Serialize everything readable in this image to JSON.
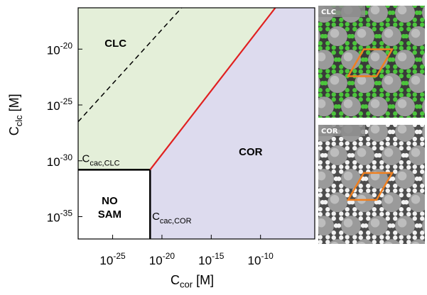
{
  "chart_data": {
    "type": "area",
    "title": "",
    "xlabel": "C",
    "xlabel_sub": "cor",
    "xlabel_unit": " [M]",
    "ylabel": "C",
    "ylabel_sub": "clc",
    "ylabel_unit": " [M]",
    "xscale": "log",
    "yscale": "log",
    "xlim_exp": [
      -28.5,
      -4.5
    ],
    "ylim_exp": [
      -37,
      -16.3
    ],
    "xticks": [
      {
        "exp": -25,
        "base": "10",
        "sup": "-25"
      },
      {
        "exp": -20,
        "base": "10",
        "sup": "-20"
      },
      {
        "exp": -15,
        "base": "10",
        "sup": "-15"
      },
      {
        "exp": -10,
        "base": "10",
        "sup": "-10"
      }
    ],
    "yticks": [
      {
        "exp": -20,
        "base": "10",
        "sup": "-20"
      },
      {
        "exp": -25,
        "base": "10",
        "sup": "-25"
      },
      {
        "exp": -30,
        "base": "10",
        "sup": "-30"
      },
      {
        "exp": -35,
        "base": "10",
        "sup": "-35"
      }
    ],
    "thresholds": {
      "cac_cor_exp": -21.2,
      "cac_clc_exp": -30.8
    },
    "boundary_red": [
      [
        -21.2,
        -30.8
      ],
      [
        -8.5,
        -16.3
      ]
    ],
    "boundary_dashed": [
      [
        -28.5,
        -26.5
      ],
      [
        -18.0,
        -16.3
      ]
    ],
    "regions": [
      {
        "name": "CLC",
        "label": "CLC",
        "color": "#e4efd9",
        "label_pos_exp": [
          -24.7,
          -19.8
        ]
      },
      {
        "name": "COR",
        "label": "COR",
        "color": "#dddbee",
        "label_pos_exp": [
          -11.0,
          -29.5
        ]
      },
      {
        "name": "NO SAM",
        "label_lines": [
          "NO",
          "SAM"
        ],
        "color": "#ffffff",
        "label_pos_exp": [
          -25.3,
          -33.9
        ]
      }
    ],
    "annotations": [
      {
        "base": "C",
        "sub": "cac,CLC",
        "pos_exp": [
          -28.1,
          -30.1
        ]
      },
      {
        "base": "C",
        "sub": "cac,COR",
        "pos_exp": [
          -21.0,
          -35.3
        ]
      }
    ],
    "colors": {
      "red_line": "#e02020",
      "dashed_line": "#000000",
      "threshold_line": "#000000"
    }
  },
  "panels": [
    {
      "name": "clc-snapshot",
      "label": "CLC",
      "background": "#3a3a3a",
      "ring_color": "#4cc43c",
      "cell_color": "#f08020"
    },
    {
      "name": "cor-snapshot",
      "label": "COR",
      "background": "#4d4d4d",
      "ring_color": "#f2f2f2",
      "cell_color": "#f08020"
    }
  ]
}
